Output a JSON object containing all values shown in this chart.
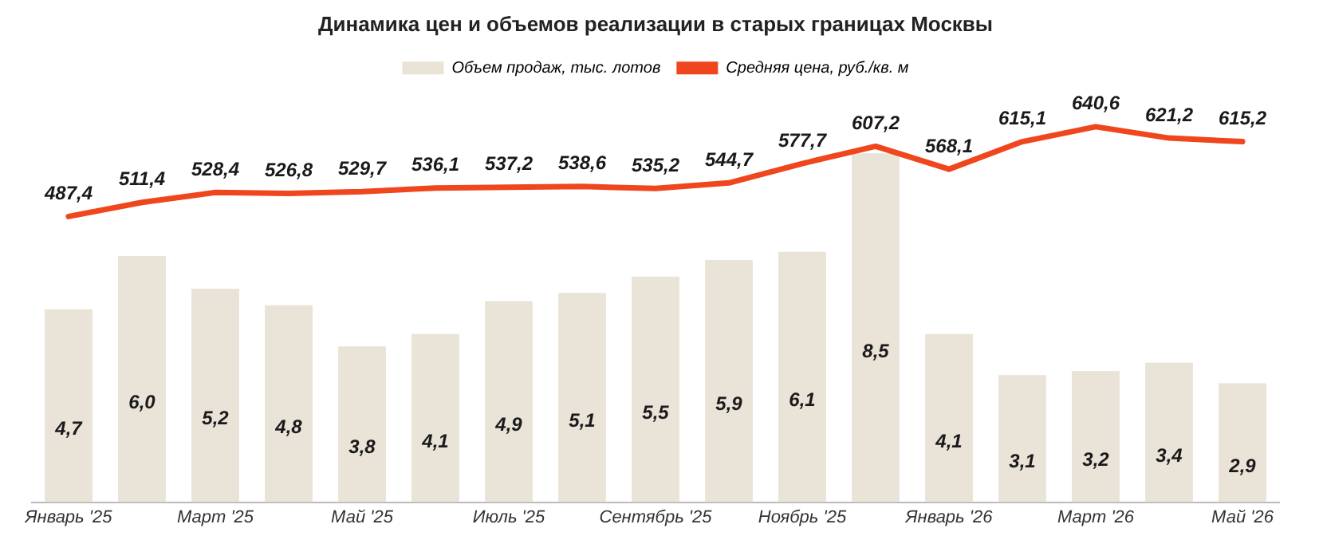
{
  "chart_data": {
    "type": "bar",
    "title": "Динамика цен и объемов реализации в старых границах Москвы",
    "categories": [
      "Январь '25",
      null,
      "Март '25",
      null,
      "Май '25",
      null,
      "Июль '25",
      null,
      "Сентябрь '25",
      null,
      "Ноябрь '25",
      null,
      "Январь '26",
      null,
      "Март '26",
      null,
      "Май '26"
    ],
    "series": [
      {
        "name": "Объем продаж, тыс. лотов",
        "color": "#e9e3d8",
        "values": [
          4.7,
          6.0,
          5.2,
          4.8,
          3.8,
          4.1,
          4.9,
          5.1,
          5.5,
          5.9,
          6.1,
          8.5,
          4.1,
          3.1,
          3.2,
          3.4,
          2.9
        ],
        "value_labels": [
          "4,7",
          "6,0",
          "5,2",
          "4,8",
          "3,8",
          "4,1",
          "4,9",
          "5,1",
          "5,5",
          "5,9",
          "6,1",
          "8,5",
          "4,1",
          "3,1",
          "3,2",
          "3,4",
          "2,9"
        ]
      },
      {
        "name": "Средняя цена, руб./кв. м",
        "type": "line",
        "axis": "y2",
        "color": "#f0461e",
        "values": [
          487.4,
          511.4,
          528.4,
          526.8,
          529.7,
          536.1,
          537.2,
          538.6,
          535.2,
          544.7,
          577.7,
          607.2,
          568.1,
          615.1,
          640.6,
          621.2,
          615.2
        ],
        "value_labels": [
          "487,4",
          "511,4",
          "528,4",
          "526,8",
          "529,7",
          "536,1",
          "537,2",
          "538,6",
          "535,2",
          "544,7",
          "577,7",
          "607,2",
          "568,1",
          "615,1",
          "640,6",
          "621,2",
          "615,2"
        ]
      }
    ],
    "tick_labels": "x",
    "legend": "top",
    "grid": false,
    "marker": "none"
  }
}
